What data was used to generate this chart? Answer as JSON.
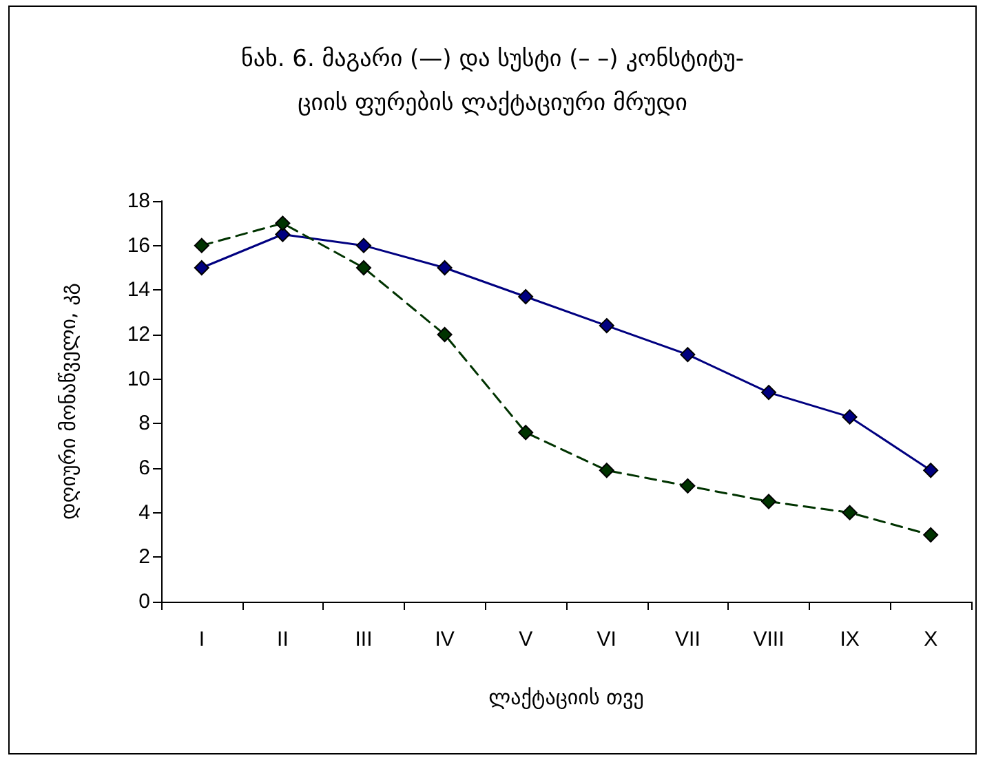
{
  "chart_data": {
    "type": "line",
    "title": "ნახ. 6. მაგარი (—) და სუსტი (– –) კონსტიტუ-\nციის ფურების ლაქტაციური მრუდი",
    "xlabel": "ლაქტაციის თვე",
    "ylabel": "დღიური მონაწველი, კგ",
    "categories": [
      "I",
      "II",
      "III",
      "IV",
      "V",
      "VI",
      "VII",
      "VIII",
      "IX",
      "X"
    ],
    "series": [
      {
        "color": "#000080",
        "line_style": "solid",
        "values": [
          15,
          16.5,
          16,
          15,
          13.7,
          12.4,
          11.1,
          9.4,
          8.3,
          5.9
        ]
      },
      {
        "color": "#003300",
        "line_style": "dashed",
        "values": [
          16,
          17,
          15,
          12,
          7.6,
          5.9,
          5.2,
          4.5,
          4,
          3
        ]
      }
    ],
    "ylim": [
      0,
      18
    ],
    "yticks": [
      0,
      2,
      4,
      6,
      8,
      10,
      12,
      14,
      16,
      18
    ],
    "grid": false,
    "marker": "diamond"
  }
}
